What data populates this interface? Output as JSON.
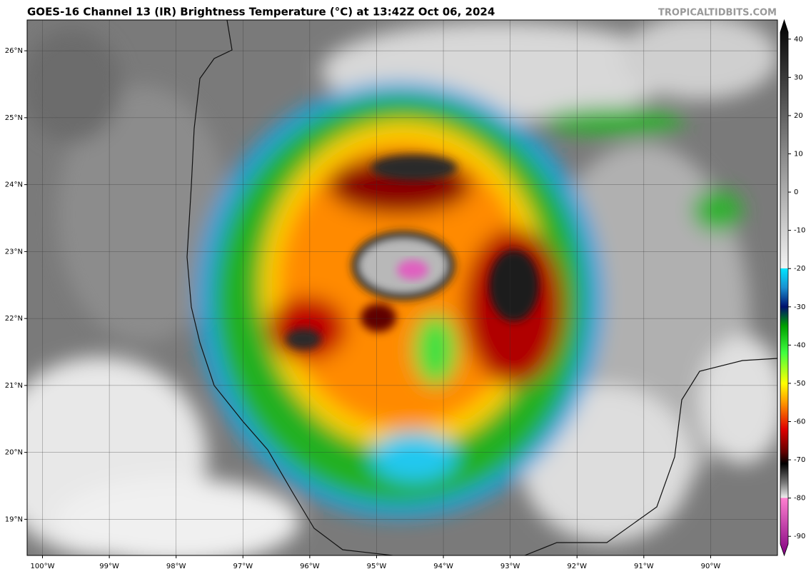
{
  "header": {
    "title": "GOES-16 Channel 13 (IR) Brightness Temperature (°C) at 13:42Z Oct 06, 2024",
    "credit": "TROPICALTIDBITS.COM"
  },
  "map": {
    "xlim": [
      -100.23,
      -89.0
    ],
    "ylim": [
      18.46,
      26.46
    ],
    "xticks": [
      {
        "value": -100,
        "label": "100°W"
      },
      {
        "value": -99,
        "label": "99°W"
      },
      {
        "value": -98,
        "label": "98°W"
      },
      {
        "value": -97,
        "label": "97°W"
      },
      {
        "value": -96,
        "label": "96°W"
      },
      {
        "value": -95,
        "label": "95°W"
      },
      {
        "value": -94,
        "label": "94°W"
      },
      {
        "value": -93,
        "label": "93°W"
      },
      {
        "value": -92,
        "label": "92°W"
      },
      {
        "value": -91,
        "label": "91°W"
      },
      {
        "value": -90,
        "label": "90°W"
      }
    ],
    "yticks": [
      {
        "value": 19,
        "label": "19°N"
      },
      {
        "value": 20,
        "label": "20°N"
      },
      {
        "value": 21,
        "label": "21°N"
      },
      {
        "value": 22,
        "label": "22°N"
      },
      {
        "value": 23,
        "label": "23°N"
      },
      {
        "value": 24,
        "label": "24°N"
      },
      {
        "value": 25,
        "label": "25°N"
      },
      {
        "value": 26,
        "label": "26°N"
      }
    ]
  },
  "colorbar": {
    "lim": [
      -95,
      45
    ],
    "ticks": [
      40,
      30,
      20,
      10,
      0,
      -10,
      -20,
      -30,
      -40,
      -50,
      -60,
      -70,
      -80,
      -90
    ],
    "stops": [
      [
        45,
        "#000000"
      ],
      [
        30,
        "#3a3a3a"
      ],
      [
        10,
        "#8a8a8a"
      ],
      [
        -19.9,
        "#f2f2f2"
      ],
      [
        -20,
        "#00e5ff"
      ],
      [
        -25,
        "#1a8fd0"
      ],
      [
        -30,
        "#00106e"
      ],
      [
        -35,
        "#00a000"
      ],
      [
        -42,
        "#40ff40"
      ],
      [
        -50,
        "#ffff00"
      ],
      [
        -55,
        "#ff9900"
      ],
      [
        -62,
        "#e00000"
      ],
      [
        -68,
        "#600000"
      ],
      [
        -71,
        "#000000"
      ],
      [
        -76,
        "#777777"
      ],
      [
        -79.9,
        "#eeeeee"
      ],
      [
        -80,
        "#ff80d0"
      ],
      [
        -95,
        "#800080"
      ]
    ]
  }
}
